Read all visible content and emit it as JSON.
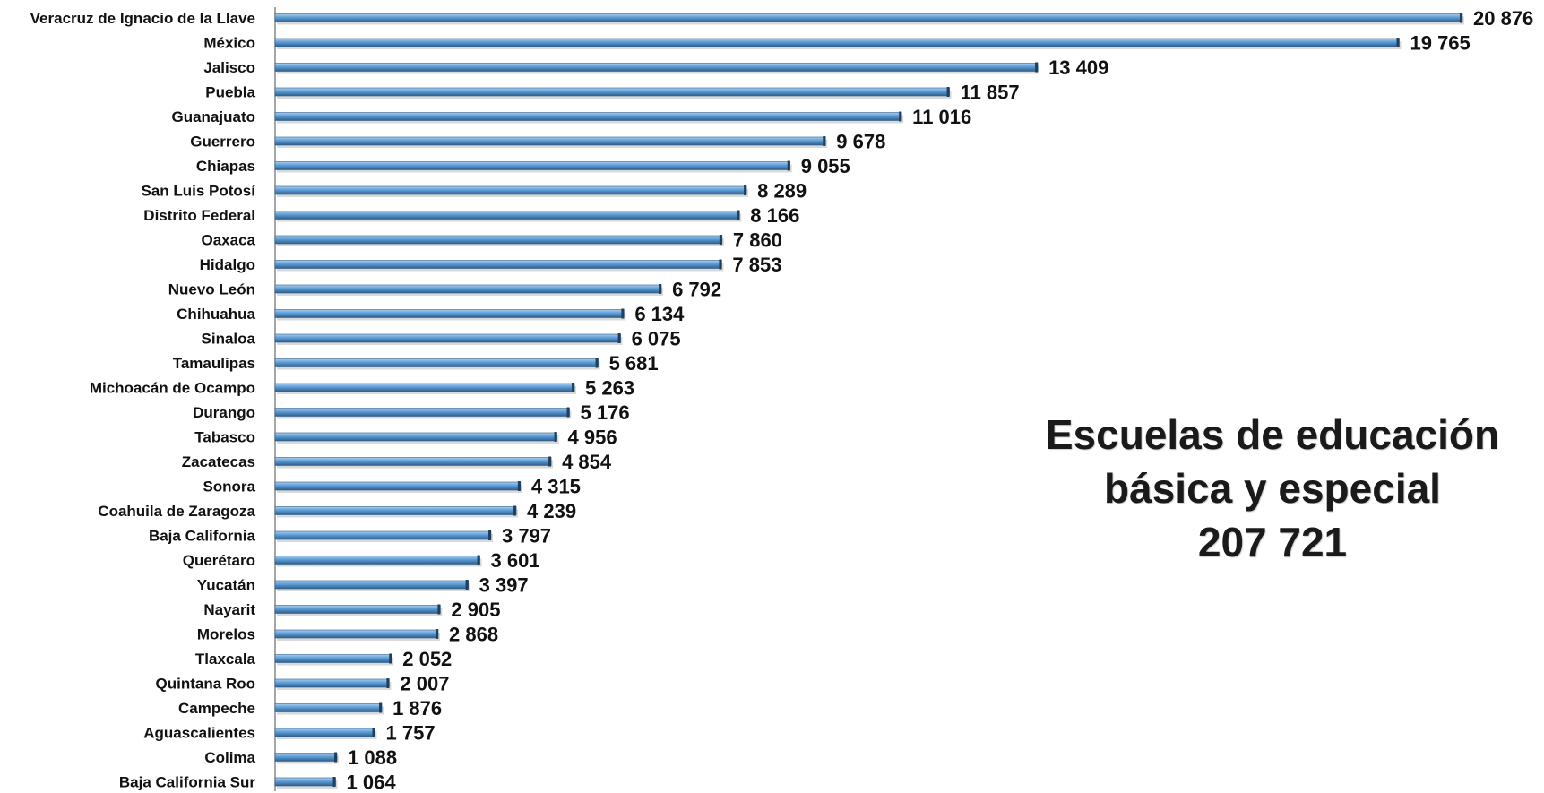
{
  "chart_data": {
    "type": "bar",
    "orientation": "horizontal",
    "categories": [
      "Veracruz de Ignacio de la Llave",
      "México",
      "Jalisco",
      "Puebla",
      "Guanajuato",
      "Guerrero",
      "Chiapas",
      "San Luis Potosí",
      "Distrito Federal",
      "Oaxaca",
      "Hidalgo",
      "Nuevo León",
      "Chihuahua",
      "Sinaloa",
      "Tamaulipas",
      "Michoacán de Ocampo",
      "Durango",
      "Tabasco",
      "Zacatecas",
      "Sonora",
      "Coahuila de Zaragoza",
      "Baja California",
      "Querétaro",
      "Yucatán",
      "Nayarit",
      "Morelos",
      "Tlaxcala",
      "Quintana Roo",
      "Campeche",
      "Aguascalientes",
      "Colima",
      "Baja California Sur"
    ],
    "values": [
      20876,
      19765,
      13409,
      11857,
      11016,
      9678,
      9055,
      8289,
      8166,
      7860,
      7853,
      6792,
      6134,
      6075,
      5681,
      5263,
      5176,
      4956,
      4854,
      4315,
      4239,
      3797,
      3601,
      3397,
      2905,
      2868,
      2052,
      2007,
      1876,
      1757,
      1088,
      1064
    ],
    "value_labels": [
      "20 876",
      "19 765",
      "13 409",
      "11 857",
      "11 016",
      "9 678",
      "9 055",
      "8 289",
      "8 166",
      "7 860",
      "7 853",
      "6 792",
      "6 134",
      "6 075",
      "5 681",
      "5 263",
      "5 176",
      "4 956",
      "4 854",
      "4 315",
      "4 239",
      "3 797",
      "3 601",
      "3 397",
      "2 905",
      "2 868",
      "2 052",
      "2 007",
      "1 876",
      "1 757",
      "1 088",
      "1 064"
    ],
    "title_lines": [
      "Escuelas de educación",
      "básica y especial",
      "207 721"
    ],
    "xlim": [
      0,
      20876
    ],
    "grid": false,
    "legend": "none",
    "colors": {
      "bar": "#5b9bd5",
      "bar_dark": "#2f5f8a",
      "bar_light": "#a9cff0"
    }
  }
}
